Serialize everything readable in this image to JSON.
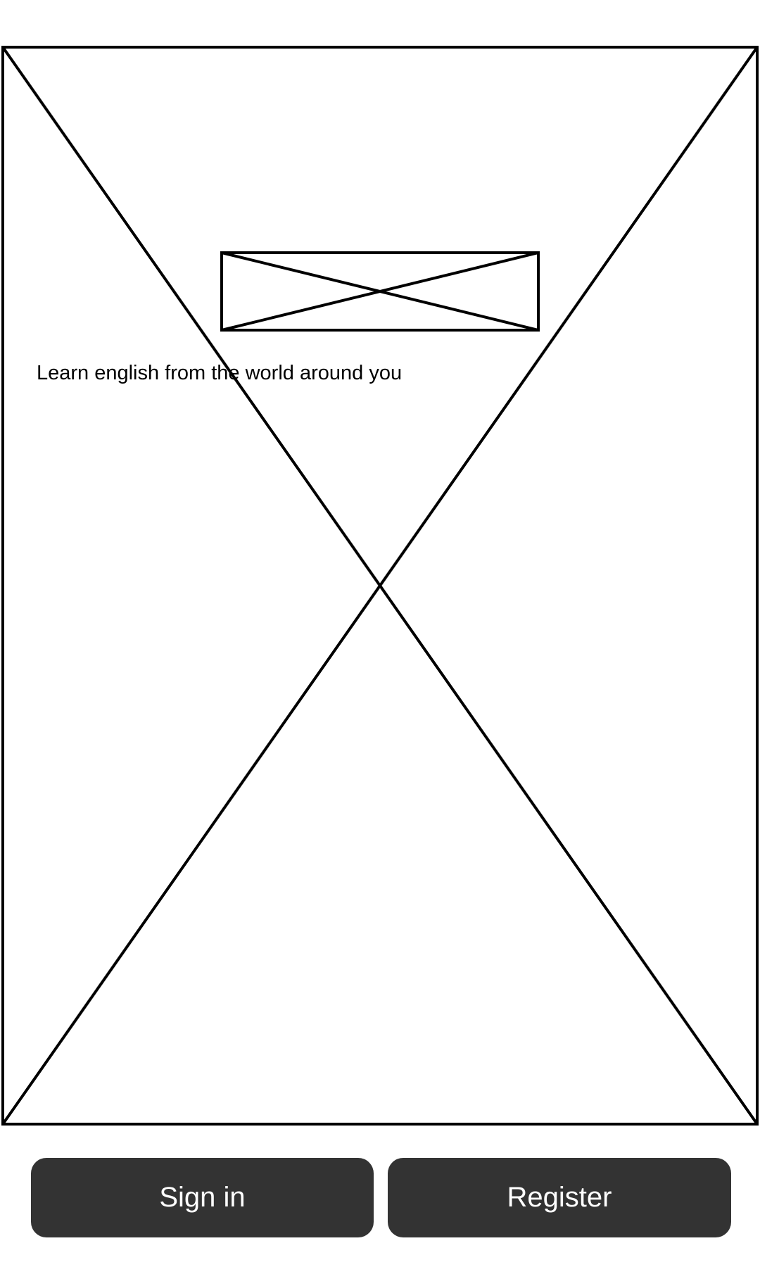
{
  "screen": {
    "background_image_icon": "image-placeholder-icon",
    "logo_icon": "image-placeholder-icon"
  },
  "tagline": "Learn english from the world around you",
  "actions": {
    "sign_in_label": "Sign in",
    "register_label": "Register",
    "button_color": "#333333",
    "button_text_color": "#ffffff"
  }
}
